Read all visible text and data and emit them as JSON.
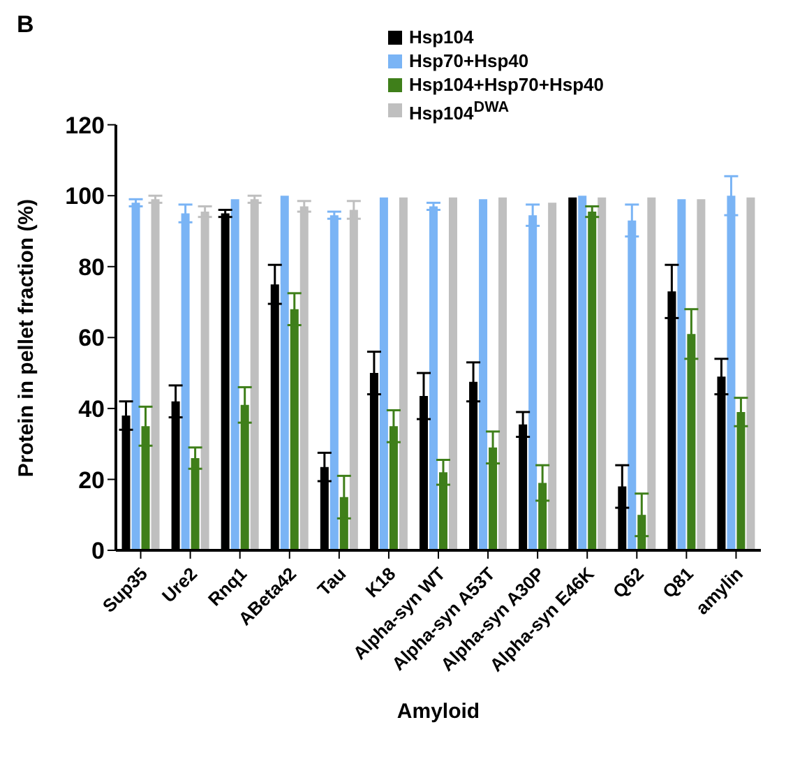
{
  "chart_data": {
    "type": "bar",
    "title": "B",
    "xlabel": "Amyloid",
    "ylabel": "Protein in pellet fraction (%)",
    "categories": [
      "Sup35",
      "Ure2",
      "Rnq1",
      "ABeta42",
      "Tau",
      "K18",
      "Alpha-syn WT",
      "Alpha-syn A53T",
      "Alpha-syn A30P",
      "Alpha-syn E46K",
      "Q62",
      "Q81",
      "amylin"
    ],
    "series": [
      {
        "name": "Hsp104",
        "color": "#000000",
        "values": [
          38,
          42,
          95,
          75,
          23.5,
          50,
          43.5,
          47.5,
          35.5,
          99.5,
          18,
          73,
          49
        ],
        "errors": [
          4,
          4.5,
          1,
          5.5,
          4,
          6,
          6.5,
          5.5,
          3.5,
          null,
          6,
          7.5,
          5
        ]
      },
      {
        "name": "Hsp70+Hsp40",
        "color": "#7ab4f5",
        "values": [
          98,
          95,
          99,
          100,
          94.5,
          99.5,
          97,
          99,
          94.5,
          100,
          93,
          99,
          100
        ],
        "errors": [
          1,
          2.5,
          null,
          null,
          1,
          null,
          1,
          null,
          3,
          null,
          4.5,
          null,
          5.5
        ]
      },
      {
        "name": "Hsp104+Hsp70+Hsp40",
        "color": "#3f7f1a",
        "values": [
          35,
          26,
          41,
          68,
          15,
          35,
          22,
          29,
          19,
          95.5,
          10,
          61,
          39
        ],
        "errors": [
          5.5,
          3,
          5,
          4.5,
          6,
          4.5,
          3.5,
          4.5,
          5,
          1.5,
          6,
          7,
          4
        ]
      },
      {
        "name": "Hsp104$^{DWA}$",
        "color": "#bfbfbf",
        "values": [
          99,
          95.5,
          99,
          97,
          96,
          99.5,
          99.5,
          99.5,
          98,
          99.5,
          99.5,
          99,
          99.5
        ],
        "errors": [
          1,
          1.5,
          1,
          1.5,
          2.5,
          null,
          null,
          null,
          null,
          null,
          null,
          null,
          null
        ]
      }
    ],
    "ylim": [
      0,
      120
    ],
    "yticks": [
      0,
      20,
      40,
      60,
      80,
      100,
      120
    ],
    "grid": false,
    "legend": "top"
  }
}
